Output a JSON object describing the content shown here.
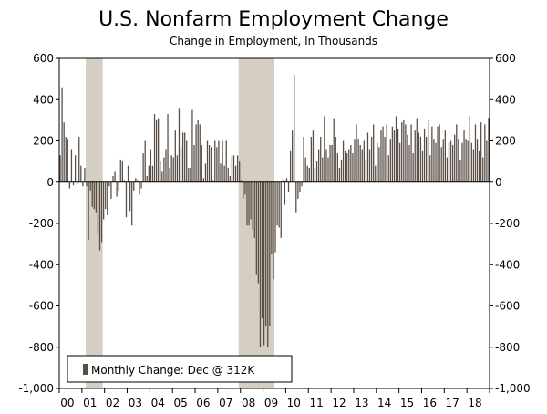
{
  "chart_data": {
    "type": "bar",
    "title": "U.S. Nonfarm Employment Change",
    "subtitle": "Change in Employment, In Thousands",
    "xlabel": "",
    "ylabel": "",
    "ylim": [
      -1000,
      600
    ],
    "yticks": [
      600,
      400,
      200,
      0,
      -200,
      -400,
      -600,
      -800,
      -1000
    ],
    "ytick_labels": [
      "600",
      "400",
      "200",
      "0",
      "-200",
      "-400",
      "-600",
      "-800",
      "-1,000"
    ],
    "x_year_start": 2000,
    "x_year_end": 2019,
    "xtick_labels": [
      "00",
      "01",
      "02",
      "03",
      "04",
      "05",
      "06",
      "07",
      "08",
      "09",
      "10",
      "11",
      "12",
      "13",
      "14",
      "15",
      "16",
      "17",
      "18"
    ],
    "recessions": [
      [
        2001.17,
        2001.92
      ],
      [
        2007.92,
        2009.5
      ]
    ],
    "legend": {
      "label": "Monthly Change: Dec @ 312K",
      "position": "bottom-left"
    },
    "colors": {
      "bar": "#594e46",
      "recession": "#d4cfc2",
      "axis": "#000000"
    },
    "series": [
      {
        "name": "Monthly Change",
        "start": "2000-01",
        "values": [
          130,
          460,
          290,
          220,
          210,
          -30,
          160,
          -15,
          130,
          -10,
          220,
          80,
          -20,
          70,
          -20,
          -280,
          -40,
          -120,
          -130,
          -150,
          -250,
          -330,
          -290,
          -180,
          -130,
          -160,
          -20,
          -80,
          30,
          50,
          -70,
          -40,
          110,
          100,
          10,
          -170,
          80,
          -140,
          -210,
          -40,
          20,
          10,
          -60,
          -30,
          140,
          200,
          30,
          80,
          160,
          80,
          330,
          300,
          310,
          100,
          50,
          120,
          160,
          330,
          70,
          130,
          120,
          250,
          130,
          360,
          170,
          240,
          240,
          200,
          70,
          70,
          350,
          180,
          280,
          300,
          280,
          180,
          20,
          90,
          200,
          180,
          170,
          10,
          200,
          170,
          200,
          90,
          200,
          80,
          200,
          70,
          30,
          130,
          130,
          80,
          130,
          100,
          10,
          -80,
          -60,
          -210,
          -210,
          -180,
          -230,
          -270,
          -450,
          -490,
          -800,
          -660,
          -790,
          -700,
          -800,
          -700,
          -350,
          -470,
          -340,
          -210,
          -220,
          -270,
          10,
          -110,
          20,
          -50,
          150,
          250,
          520,
          -150,
          -80,
          -50,
          -20,
          220,
          120,
          80,
          70,
          220,
          250,
          70,
          100,
          160,
          220,
          120,
          320,
          160,
          120,
          180,
          180,
          310,
          220,
          140,
          70,
          110,
          200,
          150,
          140,
          160,
          180,
          140,
          210,
          280,
          210,
          180,
          160,
          200,
          110,
          240,
          160,
          220,
          280,
          80,
          190,
          170,
          250,
          270,
          220,
          280,
          130,
          210,
          270,
          250,
          320,
          260,
          190,
          290,
          300,
          280,
          230,
          180,
          280,
          140,
          250,
          310,
          240,
          220,
          150,
          260,
          220,
          300,
          130,
          270,
          210,
          190,
          270,
          280,
          170,
          210,
          250,
          120,
          190,
          200,
          180,
          230,
          280,
          210,
          110,
          190,
          250,
          210,
          200,
          320,
          190,
          160,
          280,
          210,
          150,
          290,
          120,
          280,
          200,
          312
        ]
      }
    ]
  }
}
